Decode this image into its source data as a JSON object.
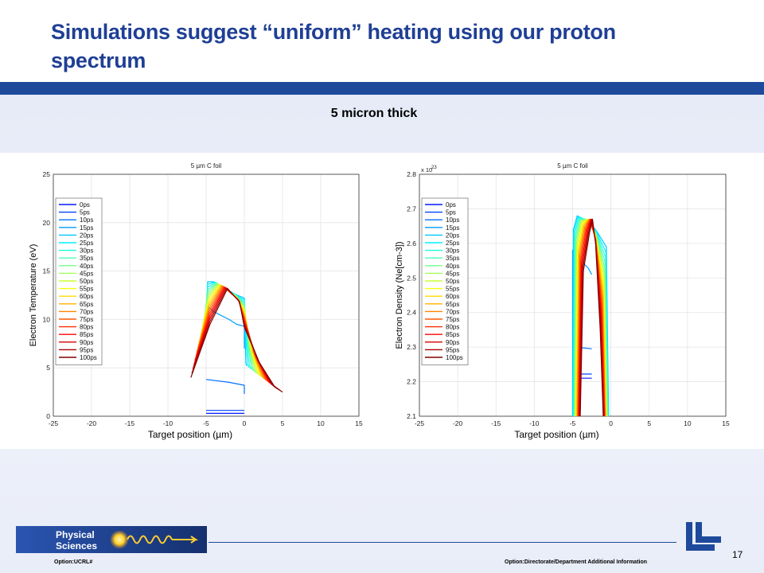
{
  "slide": {
    "title": "Simulations suggest “uniform” heating using our proton spectrum",
    "subtitle": "5 micron thick",
    "page_number": "17",
    "footer_left": "Option:UCRL#",
    "footer_right": "Option:Directorate/Department  Additional Information",
    "logo_text_line1": "Physical",
    "logo_text_line2": "Sciences",
    "colors": {
      "title": "#1f3f95",
      "bar": "#1e4a9c"
    }
  },
  "legend_labels": [
    "0ps",
    "5ps",
    "10ps",
    "15ps",
    "20ps",
    "25ps",
    "30ps",
    "35ps",
    "40ps",
    "45ps",
    "50ps",
    "55ps",
    "60ps",
    "65ps",
    "70ps",
    "75ps",
    "80ps",
    "85ps",
    "90ps",
    "95ps",
    "100ps"
  ],
  "chart_data": [
    {
      "type": "line",
      "title": "5 µm C foil",
      "xlabel": "Target position (µm)",
      "ylabel": "Electron Temperature (eV)",
      "xlim": [
        -25,
        15
      ],
      "ylim": [
        0,
        25
      ],
      "xticks": [
        -25,
        -20,
        -15,
        -10,
        -5,
        0,
        5,
        10,
        15
      ],
      "yticks": [
        0,
        5,
        10,
        15,
        20,
        25
      ],
      "grid": true,
      "legend": "top-left",
      "series_note": "21 time curves 0ps–100ps, colored jet blue→red",
      "series": [
        {
          "name": "0ps",
          "x": [
            -5,
            0
          ],
          "y": [
            0.3,
            0.3
          ]
        },
        {
          "name": "5ps",
          "x": [
            -5,
            0
          ],
          "y": [
            0.6,
            0.6
          ]
        },
        {
          "name": "10ps",
          "x": [
            -5,
            -2,
            0,
            0
          ],
          "y": [
            3.8,
            3.5,
            3.2,
            2.3
          ]
        },
        {
          "name": "15ps",
          "x": [
            -5,
            -4,
            -1,
            0,
            0
          ],
          "y": [
            11.5,
            10.8,
            9.5,
            9.3,
            7.0
          ]
        },
        {
          "name": "100ps",
          "x": [
            -7,
            -4,
            -2,
            0,
            2,
            4,
            5
          ],
          "y": [
            4.0,
            10.5,
            13.2,
            10.5,
            5.5,
            3.0,
            2.5
          ]
        }
      ]
    },
    {
      "type": "line",
      "title": "5 µm C foil",
      "xlabel": "Target position (µm)",
      "ylabel": "Electron Density (Ne[cm-3])",
      "y_multiplier": "x 10",
      "y_exponent": "23",
      "xlim": [
        -25,
        15
      ],
      "ylim": [
        2.1,
        2.8
      ],
      "xticks": [
        -25,
        -20,
        -15,
        -10,
        -5,
        0,
        5,
        10,
        15
      ],
      "yticks": [
        2.1,
        2.2,
        2.3,
        2.4,
        2.5,
        2.6,
        2.7,
        2.8
      ],
      "grid": true,
      "legend": "top-left",
      "series": [
        {
          "name": "0ps",
          "x": [
            -5,
            -2.5
          ],
          "y": [
            2.21,
            2.21
          ]
        },
        {
          "name": "5ps",
          "x": [
            -5,
            -2.5
          ],
          "y": [
            2.22,
            2.22
          ]
        },
        {
          "name": "10ps",
          "x": [
            -5,
            -2.5
          ],
          "y": [
            2.3,
            2.3
          ]
        },
        {
          "name": "15ps",
          "x": [
            -5,
            -4.5,
            -1
          ],
          "y": [
            2.58,
            2.54,
            2.51
          ]
        },
        {
          "name": "100ps",
          "x": [
            -4,
            -3,
            -2.5,
            -2,
            -1
          ],
          "y": [
            2.1,
            2.55,
            2.67,
            2.55,
            2.1
          ]
        }
      ]
    }
  ]
}
